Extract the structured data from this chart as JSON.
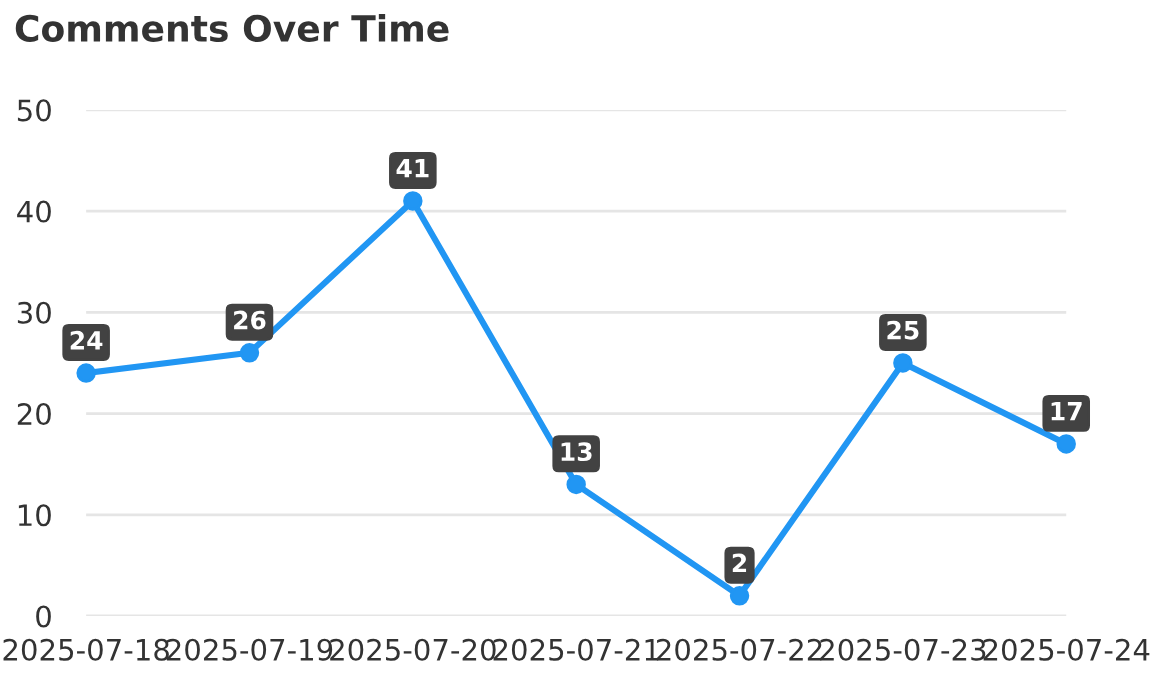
{
  "chart_data": {
    "type": "line",
    "title": "Comments Over Time",
    "categories": [
      "2025-07-18",
      "2025-07-19",
      "2025-07-20",
      "2025-07-21",
      "2025-07-22",
      "2025-07-23",
      "2025-07-24"
    ],
    "series": [
      {
        "color": "#2196f3",
        "values": [
          24,
          26,
          41,
          13,
          2,
          25,
          17
        ]
      }
    ],
    "ylim": [
      0,
      50
    ],
    "yticks": [
      0,
      10,
      20,
      30,
      40,
      50
    ],
    "grid": "y",
    "marker": "circle",
    "line_style": "solid",
    "data_labels": true,
    "legend": false
  }
}
